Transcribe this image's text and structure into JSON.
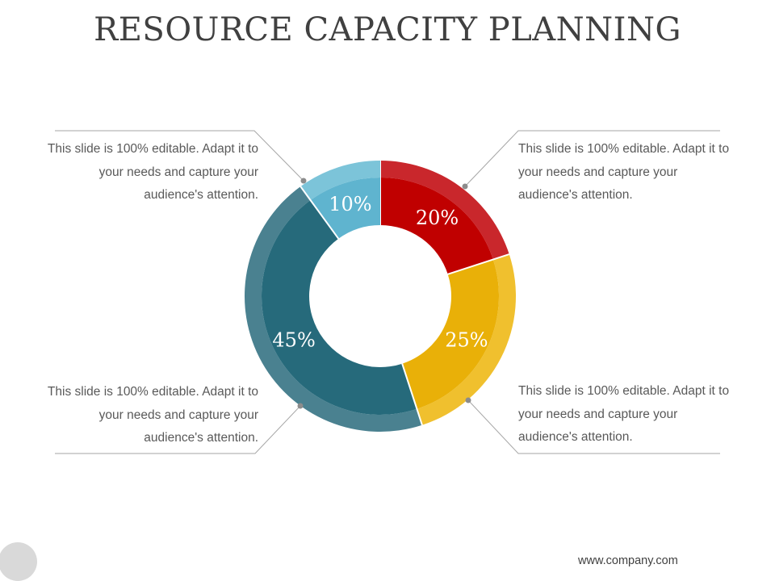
{
  "slide": {
    "title": "RESOURCE CAPACITY PLANNING",
    "footer": "www.company.com"
  },
  "callouts": {
    "top_left": {
      "lines": [
        "This slide is 100% editable. Adapt it to",
        "your needs and capture your",
        "audience's attention."
      ]
    },
    "top_right": {
      "lines": [
        "This slide is 100% editable. Adapt it to",
        "your needs and capture your",
        "audience's attention."
      ]
    },
    "bottom_left": {
      "lines": [
        "This slide is 100% editable. Adapt it to",
        "your needs and capture your",
        "audience's attention."
      ]
    },
    "bottom_right": {
      "lines": [
        "This slide is 100% editable. Adapt it to",
        "your needs and capture your",
        "audience's attention."
      ]
    }
  },
  "chart_data": {
    "type": "pie",
    "title": "",
    "slices": [
      {
        "label": "20%",
        "value": 20,
        "color": "#c00000",
        "outer_color": "#c9272c"
      },
      {
        "label": "25%",
        "value": 25,
        "color": "#e9b008",
        "outer_color": "#f0c02e"
      },
      {
        "label": "45%",
        "value": 45,
        "color": "#266a7b",
        "outer_color": "#4a8190"
      },
      {
        "label": "10%",
        "value": 10,
        "color": "#5fb4cf",
        "outer_color": "#7cc4d9"
      }
    ]
  },
  "colors": {
    "connector": "#a6a6a6",
    "connector_dot": "#8c8c8c"
  }
}
